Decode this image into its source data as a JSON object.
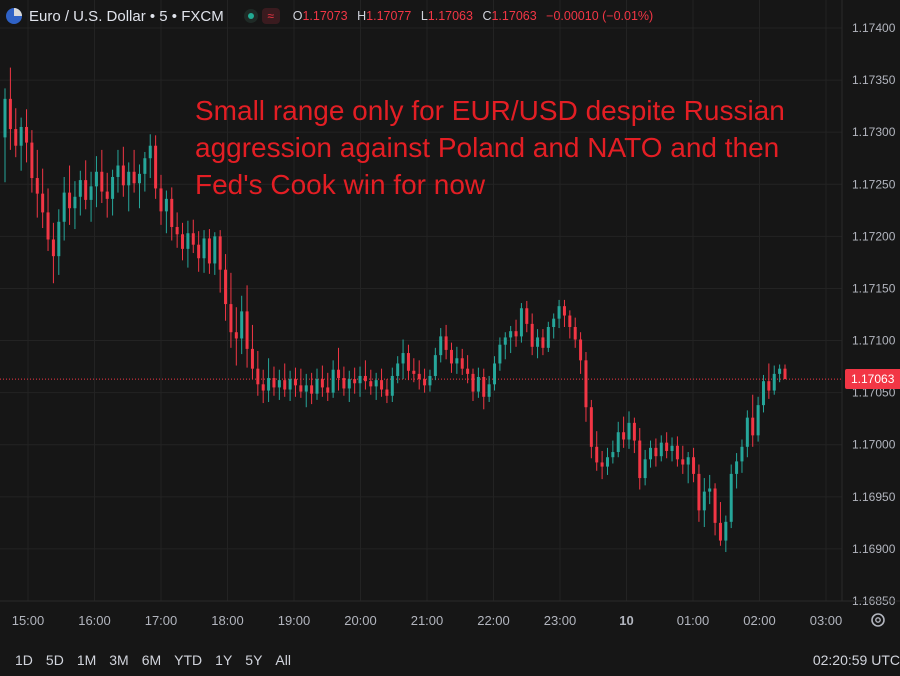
{
  "header": {
    "symbol_title": "Euro / U.S. Dollar • 5 • FXCM",
    "ohlc": [
      {
        "k": "O",
        "v": "1.17073"
      },
      {
        "k": "H",
        "v": "1.17077"
      },
      {
        "k": "L",
        "v": "1.17063"
      },
      {
        "k": "C",
        "v": "1.17063"
      }
    ],
    "change": "−0.00010 (−0.01%)"
  },
  "annotation": [
    "Small range only for EUR/USD despite Russian",
    "aggression against Poland and NATO and then",
    "Fed's Cook win for now"
  ],
  "current_price": "1.17063",
  "timeframes": [
    "1D",
    "5D",
    "1M",
    "3M",
    "6M",
    "YTD",
    "1Y",
    "5Y",
    "All"
  ],
  "clock": "02:20:59 UTC",
  "colors": {
    "up": "#26a69a",
    "down": "#f23645",
    "annotation": "#e31e24",
    "bg": "#161616"
  },
  "icons": {
    "settings": "gear-icon",
    "status": "market-open-dot-icon",
    "compare": "wave-icon"
  },
  "chart_data": {
    "type": "candlestick",
    "title": "Euro / U.S. Dollar • 5 • FXCM",
    "x_tick_labels": [
      "15:00",
      "16:00",
      "17:00",
      "18:00",
      "19:00",
      "20:00",
      "21:00",
      "22:00",
      "23:00",
      "10",
      "01:00",
      "02:00",
      "03:00"
    ],
    "y_tick_labels": [
      "1.17400",
      "1.17350",
      "1.17300",
      "1.17250",
      "1.17200",
      "1.17150",
      "1.17100",
      "1.17050",
      "1.17000",
      "1.16950",
      "1.16900",
      "1.16850"
    ],
    "ylim": [
      1.1685,
      1.174
    ],
    "grid": true,
    "current_price": 1.17063,
    "candles": [
      [
        1.17295,
        1.17342,
        1.17252,
        1.17332
      ],
      [
        1.17332,
        1.17362,
        1.17283,
        1.17303
      ],
      [
        1.17303,
        1.17323,
        1.17276,
        1.17287
      ],
      [
        1.17287,
        1.17314,
        1.17263,
        1.17305
      ],
      [
        1.17305,
        1.17322,
        1.17271,
        1.1729
      ],
      [
        1.1729,
        1.17302,
        1.17242,
        1.17256
      ],
      [
        1.17256,
        1.17283,
        1.17218,
        1.17241
      ],
      [
        1.17241,
        1.17265,
        1.17208,
        1.17223
      ],
      [
        1.17223,
        1.17246,
        1.17186,
        1.17197
      ],
      [
        1.17197,
        1.17213,
        1.17155,
        1.17181
      ],
      [
        1.17181,
        1.17226,
        1.17163,
        1.17214
      ],
      [
        1.17214,
        1.17257,
        1.17196,
        1.17242
      ],
      [
        1.17242,
        1.17268,
        1.17211,
        1.17227
      ],
      [
        1.17227,
        1.17253,
        1.17207,
        1.17238
      ],
      [
        1.17238,
        1.17263,
        1.1722,
        1.17254
      ],
      [
        1.17254,
        1.17273,
        1.17226,
        1.17235
      ],
      [
        1.17235,
        1.17262,
        1.17214,
        1.17248
      ],
      [
        1.17248,
        1.17277,
        1.17228,
        1.17262
      ],
      [
        1.17262,
        1.17283,
        1.17232,
        1.17243
      ],
      [
        1.17243,
        1.17261,
        1.17218,
        1.17236
      ],
      [
        1.17236,
        1.17264,
        1.1722,
        1.17257
      ],
      [
        1.17257,
        1.17283,
        1.17242,
        1.17268
      ],
      [
        1.17268,
        1.17286,
        1.17238,
        1.17249
      ],
      [
        1.17249,
        1.17271,
        1.17224,
        1.17262
      ],
      [
        1.17262,
        1.17283,
        1.17242,
        1.17251
      ],
      [
        1.17251,
        1.17269,
        1.17227,
        1.1726
      ],
      [
        1.1726,
        1.17281,
        1.17243,
        1.17275
      ],
      [
        1.17275,
        1.17298,
        1.17256,
        1.17287
      ],
      [
        1.17287,
        1.17297,
        1.17236,
        1.17246
      ],
      [
        1.17246,
        1.17259,
        1.17211,
        1.17224
      ],
      [
        1.17224,
        1.17244,
        1.17203,
        1.17236
      ],
      [
        1.17236,
        1.17247,
        1.17196,
        1.17209
      ],
      [
        1.17209,
        1.17223,
        1.17189,
        1.17202
      ],
      [
        1.17202,
        1.17213,
        1.17177,
        1.17188
      ],
      [
        1.17188,
        1.17215,
        1.1717,
        1.17203
      ],
      [
        1.17203,
        1.17216,
        1.17184,
        1.17192
      ],
      [
        1.17192,
        1.17205,
        1.17166,
        1.17179
      ],
      [
        1.17179,
        1.17206,
        1.17165,
        1.17198
      ],
      [
        1.17198,
        1.17207,
        1.17164,
        1.17174
      ],
      [
        1.17174,
        1.17204,
        1.17163,
        1.172
      ],
      [
        1.172,
        1.17206,
        1.17146,
        1.17168
      ],
      [
        1.17168,
        1.17183,
        1.17119,
        1.17135
      ],
      [
        1.17135,
        1.17165,
        1.17093,
        1.17108
      ],
      [
        1.17108,
        1.17132,
        1.17076,
        1.17102
      ],
      [
        1.17102,
        1.17143,
        1.17087,
        1.17128
      ],
      [
        1.17128,
        1.17153,
        1.17074,
        1.17092
      ],
      [
        1.17092,
        1.17115,
        1.17063,
        1.17073
      ],
      [
        1.17073,
        1.1709,
        1.17047,
        1.17058
      ],
      [
        1.17058,
        1.17072,
        1.1704,
        1.17052
      ],
      [
        1.17052,
        1.17083,
        1.17041,
        1.17064
      ],
      [
        1.17064,
        1.17075,
        1.17047,
        1.17055
      ],
      [
        1.17055,
        1.17072,
        1.17043,
        1.17062
      ],
      [
        1.17062,
        1.17078,
        1.17046,
        1.17053
      ],
      [
        1.17053,
        1.17071,
        1.17042,
        1.17063
      ],
      [
        1.17063,
        1.17074,
        1.17046,
        1.17057
      ],
      [
        1.17057,
        1.17073,
        1.17045,
        1.17051
      ],
      [
        1.17051,
        1.17068,
        1.17036,
        1.17057
      ],
      [
        1.17057,
        1.17069,
        1.17039,
        1.17049
      ],
      [
        1.17049,
        1.17073,
        1.17043,
        1.17063
      ],
      [
        1.17063,
        1.17076,
        1.17046,
        1.17055
      ],
      [
        1.17055,
        1.17069,
        1.17042,
        1.1705
      ],
      [
        1.1705,
        1.17081,
        1.17045,
        1.17072
      ],
      [
        1.17072,
        1.17093,
        1.17052,
        1.17064
      ],
      [
        1.17064,
        1.17075,
        1.17047,
        1.17054
      ],
      [
        1.17054,
        1.17071,
        1.17041,
        1.17063
      ],
      [
        1.17063,
        1.17074,
        1.17049,
        1.17059
      ],
      [
        1.17059,
        1.17075,
        1.17046,
        1.17066
      ],
      [
        1.17066,
        1.17081,
        1.17053,
        1.17061
      ],
      [
        1.17061,
        1.17072,
        1.17048,
        1.17056
      ],
      [
        1.17056,
        1.17069,
        1.17043,
        1.17062
      ],
      [
        1.17062,
        1.17073,
        1.17046,
        1.17053
      ],
      [
        1.17053,
        1.17063,
        1.1704,
        1.17047
      ],
      [
        1.17047,
        1.17074,
        1.17041,
        1.17066
      ],
      [
        1.17066,
        1.17085,
        1.17059,
        1.17078
      ],
      [
        1.17078,
        1.17101,
        1.17063,
        1.17088
      ],
      [
        1.17088,
        1.17096,
        1.17062,
        1.17071
      ],
      [
        1.17071,
        1.17083,
        1.1706,
        1.17068
      ],
      [
        1.17068,
        1.17081,
        1.17053,
        1.17063
      ],
      [
        1.17063,
        1.17073,
        1.1705,
        1.17057
      ],
      [
        1.17057,
        1.17072,
        1.17051,
        1.17066
      ],
      [
        1.17066,
        1.17093,
        1.17062,
        1.17086
      ],
      [
        1.17086,
        1.17112,
        1.17079,
        1.17104
      ],
      [
        1.17104,
        1.17115,
        1.17082,
        1.17091
      ],
      [
        1.17091,
        1.17098,
        1.17069,
        1.17078
      ],
      [
        1.17078,
        1.17094,
        1.17068,
        1.17083
      ],
      [
        1.17083,
        1.17092,
        1.17067,
        1.17073
      ],
      [
        1.17073,
        1.17086,
        1.17059,
        1.17068
      ],
      [
        1.17068,
        1.17073,
        1.17042,
        1.17051
      ],
      [
        1.17051,
        1.17074,
        1.17045,
        1.17065
      ],
      [
        1.17065,
        1.17073,
        1.17034,
        1.17046
      ],
      [
        1.17046,
        1.17066,
        1.17041,
        1.17058
      ],
      [
        1.17058,
        1.17085,
        1.17052,
        1.17078
      ],
      [
        1.17078,
        1.17103,
        1.17071,
        1.17096
      ],
      [
        1.17096,
        1.17108,
        1.17082,
        1.17103
      ],
      [
        1.17103,
        1.17114,
        1.17088,
        1.17109
      ],
      [
        1.17109,
        1.1712,
        1.17094,
        1.17104
      ],
      [
        1.17104,
        1.17136,
        1.17098,
        1.17131
      ],
      [
        1.17131,
        1.17138,
        1.17108,
        1.17116
      ],
      [
        1.17116,
        1.17126,
        1.17086,
        1.17094
      ],
      [
        1.17094,
        1.17111,
        1.17083,
        1.17103
      ],
      [
        1.17103,
        1.17111,
        1.17086,
        1.17093
      ],
      [
        1.17093,
        1.17118,
        1.17089,
        1.17113
      ],
      [
        1.17113,
        1.17126,
        1.17102,
        1.17121
      ],
      [
        1.17121,
        1.17139,
        1.17112,
        1.17133
      ],
      [
        1.17133,
        1.17139,
        1.17113,
        1.17124
      ],
      [
        1.17124,
        1.17129,
        1.17102,
        1.17113
      ],
      [
        1.17113,
        1.17122,
        1.17093,
        1.17101
      ],
      [
        1.17101,
        1.17108,
        1.17068,
        1.17081
      ],
      [
        1.17081,
        1.17089,
        1.17022,
        1.17036
      ],
      [
        1.17036,
        1.17043,
        1.16987,
        1.16998
      ],
      [
        1.16998,
        1.17013,
        1.16975,
        1.16983
      ],
      [
        1.16983,
        1.16994,
        1.16967,
        1.16979
      ],
      [
        1.16979,
        1.16997,
        1.16971,
        1.16988
      ],
      [
        1.16988,
        1.17004,
        1.16982,
        1.16993
      ],
      [
        1.16993,
        1.17022,
        1.16988,
        1.17012
      ],
      [
        1.17012,
        1.17027,
        1.16997,
        1.17005
      ],
      [
        1.17005,
        1.17032,
        1.16996,
        1.17021
      ],
      [
        1.17021,
        1.17026,
        1.16992,
        1.17004
      ],
      [
        1.17004,
        1.17016,
        1.16957,
        1.16968
      ],
      [
        1.16968,
        1.16995,
        1.16961,
        1.16986
      ],
      [
        1.16986,
        1.17004,
        1.16978,
        1.16997
      ],
      [
        1.16997,
        1.17006,
        1.16979,
        1.16989
      ],
      [
        1.16989,
        1.17009,
        1.16984,
        1.17002
      ],
      [
        1.17002,
        1.17012,
        1.16987,
        1.16994
      ],
      [
        1.16994,
        1.17007,
        1.16984,
        1.16999
      ],
      [
        1.16999,
        1.17008,
        1.16979,
        1.16986
      ],
      [
        1.16986,
        1.16999,
        1.16972,
        1.16981
      ],
      [
        1.16981,
        1.16993,
        1.16963,
        1.16988
      ],
      [
        1.16988,
        1.16997,
        1.16964,
        1.16972
      ],
      [
        1.16972,
        1.16981,
        1.16926,
        1.16937
      ],
      [
        1.16937,
        1.16968,
        1.16921,
        1.16955
      ],
      [
        1.16955,
        1.16971,
        1.16943,
        1.16958
      ],
      [
        1.16958,
        1.16963,
        1.16913,
        1.16925
      ],
      [
        1.16925,
        1.16945,
        1.16903,
        1.16908
      ],
      [
        1.16908,
        1.16932,
        1.16897,
        1.16926
      ],
      [
        1.16926,
        1.16981,
        1.1692,
        1.16972
      ],
      [
        1.16972,
        1.16992,
        1.16958,
        1.16984
      ],
      [
        1.16984,
        1.17005,
        1.16973,
        1.16998
      ],
      [
        1.16998,
        1.17033,
        1.16988,
        1.17026
      ],
      [
        1.17026,
        1.17048,
        1.16998,
        1.17009
      ],
      [
        1.17009,
        1.17046,
        1.17003,
        1.17038
      ],
      [
        1.17038,
        1.17067,
        1.17031,
        1.17061
      ],
      [
        1.17061,
        1.17078,
        1.17044,
        1.17052
      ],
      [
        1.17052,
        1.17076,
        1.17048,
        1.17068
      ],
      [
        1.17068,
        1.17077,
        1.1706,
        1.17073
      ],
      [
        1.17073,
        1.17077,
        1.17063,
        1.17063
      ]
    ]
  }
}
